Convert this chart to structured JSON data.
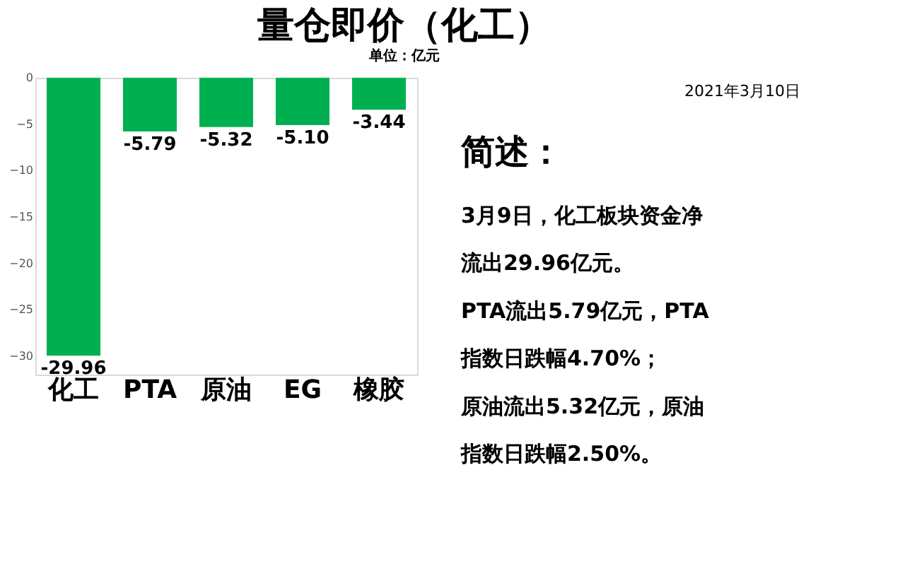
{
  "chart_data": {
    "type": "bar",
    "title": "量仓即价（化工）",
    "subtitle": "单位：亿元",
    "categories": [
      "化工",
      "PTA",
      "原油",
      "EG",
      "橡胶"
    ],
    "values": [
      -29.96,
      -5.79,
      -5.32,
      -5.1,
      -3.44
    ],
    "value_labels": [
      "-29.96",
      "-5.79",
      "-5.32",
      "-5.10",
      "-3.44"
    ],
    "color": "#00b050",
    "ylim": [
      -32,
      0
    ],
    "yticks": [
      0,
      -5,
      -10,
      -15,
      -20,
      -25,
      -30
    ],
    "grid": false,
    "annotations": [
      "2021年3月10日",
      "简述：",
      "3月9日，化工板块资金净流出29.96亿元。",
      "PTA流出5.79亿元，PTA指数日跌幅4.70%；",
      "原油流出5.32亿元，原油指数日跌幅2.50%。"
    ]
  }
}
